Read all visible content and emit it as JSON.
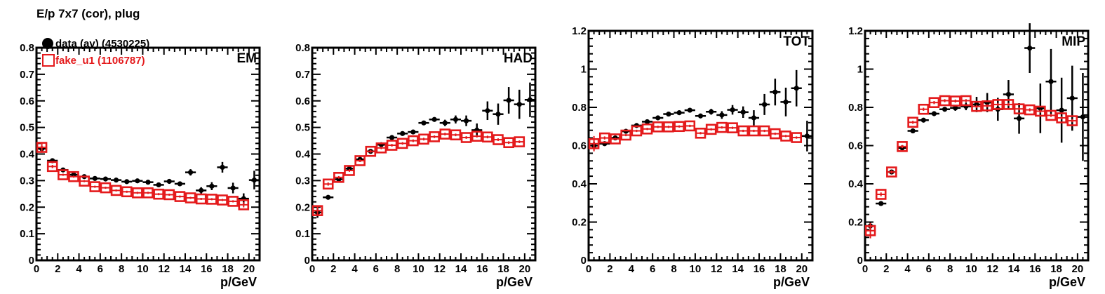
{
  "title": "E/p 7x7 (cor), plug",
  "colors": {
    "data": "#000000",
    "mc": "#e41a1c",
    "axis": "#000000"
  },
  "legend": {
    "data_label": "data (av) (4530225)",
    "mc_label": "fake_u1 (1106787)"
  },
  "chart_data": [
    {
      "type": "scatter",
      "panel_label": "EM",
      "xlabel": "p/GeV",
      "ylabel": "",
      "xlim": [
        0,
        21
      ],
      "ylim": [
        0,
        0.8
      ],
      "xticks": [
        "0",
        "2",
        "4",
        "6",
        "8",
        "10",
        "12",
        "14",
        "16",
        "18",
        "20"
      ],
      "yticks": [
        "0",
        "0.1",
        "0.2",
        "0.3",
        "0.4",
        "0.5",
        "0.6",
        "0.7",
        "0.8"
      ],
      "ytick_values": [
        0,
        0.1,
        0.2,
        0.3,
        0.4,
        0.5,
        0.6,
        0.7,
        0.8
      ],
      "series": [
        {
          "name": "data (av) (4530225)",
          "x": [
            0.5,
            1.5,
            2.5,
            3.5,
            4.5,
            5.5,
            6.5,
            7.5,
            8.5,
            9.5,
            10.5,
            11.5,
            12.5,
            13.5,
            14.5,
            15.5,
            16.5,
            17.5,
            18.5,
            19.5,
            20.5
          ],
          "y": [
            0.42,
            0.375,
            0.34,
            0.322,
            0.315,
            0.308,
            0.306,
            0.302,
            0.296,
            0.299,
            0.294,
            0.284,
            0.297,
            0.288,
            0.331,
            0.263,
            0.279,
            0.35,
            0.272,
            0.232,
            0.302
          ],
          "yerr": [
            0.004,
            0.003,
            0.003,
            0.003,
            0.003,
            0.003,
            0.003,
            0.004,
            0.004,
            0.004,
            0.005,
            0.006,
            0.008,
            0.008,
            0.012,
            0.012,
            0.015,
            0.02,
            0.02,
            0.02,
            0.035
          ]
        },
        {
          "name": "fake_u1 (1106787)",
          "x": [
            0.5,
            1.5,
            2.5,
            3.5,
            4.5,
            5.5,
            6.5,
            7.5,
            8.5,
            9.5,
            10.5,
            11.5,
            12.5,
            13.5,
            14.5,
            15.5,
            16.5,
            17.5,
            18.5,
            19.5
          ],
          "y": [
            0.425,
            0.353,
            0.322,
            0.315,
            0.298,
            0.277,
            0.273,
            0.263,
            0.258,
            0.254,
            0.254,
            0.249,
            0.247,
            0.24,
            0.235,
            0.231,
            0.23,
            0.227,
            0.222,
            0.209
          ],
          "yerr": [
            0.02,
            0.006,
            0.004,
            0.004,
            0.004,
            0.004,
            0.004,
            0.004,
            0.004,
            0.004,
            0.004,
            0.004,
            0.004,
            0.004,
            0.004,
            0.004,
            0.004,
            0.004,
            0.004,
            0.01
          ]
        }
      ]
    },
    {
      "type": "scatter",
      "panel_label": "HAD",
      "xlabel": "p/GeV",
      "ylabel": "",
      "xlim": [
        0,
        21
      ],
      "ylim": [
        0,
        0.8
      ],
      "xticks": [
        "0",
        "2",
        "4",
        "6",
        "8",
        "10",
        "12",
        "14",
        "16",
        "18",
        "20"
      ],
      "yticks": [
        "0",
        "0.1",
        "0.2",
        "0.3",
        "0.4",
        "0.5",
        "0.6",
        "0.7",
        "0.8"
      ],
      "ytick_values": [
        0,
        0.1,
        0.2,
        0.3,
        0.4,
        0.5,
        0.6,
        0.7,
        0.8
      ],
      "series": [
        {
          "name": "data (av) (4530225)",
          "x": [
            0.5,
            1.5,
            2.5,
            3.5,
            4.5,
            5.5,
            6.5,
            7.5,
            8.5,
            9.5,
            10.5,
            11.5,
            12.5,
            13.5,
            14.5,
            15.5,
            16.5,
            17.5,
            18.5,
            19.5,
            20.5
          ],
          "y": [
            0.18,
            0.237,
            0.305,
            0.345,
            0.38,
            0.41,
            0.435,
            0.462,
            0.477,
            0.483,
            0.517,
            0.53,
            0.517,
            0.53,
            0.525,
            0.49,
            0.563,
            0.55,
            0.602,
            0.587,
            0.604
          ],
          "yerr": [
            0.02,
            0.003,
            0.003,
            0.003,
            0.004,
            0.004,
            0.004,
            0.005,
            0.005,
            0.005,
            0.007,
            0.008,
            0.012,
            0.015,
            0.02,
            0.025,
            0.035,
            0.04,
            0.05,
            0.055,
            0.065
          ]
        },
        {
          "name": "fake_u1 (1106787)",
          "x": [
            0.5,
            1.5,
            2.5,
            3.5,
            4.5,
            5.5,
            6.5,
            7.5,
            8.5,
            9.5,
            10.5,
            11.5,
            12.5,
            13.5,
            14.5,
            15.5,
            16.5,
            17.5,
            18.5,
            19.5
          ],
          "y": [
            0.187,
            0.287,
            0.312,
            0.338,
            0.375,
            0.41,
            0.423,
            0.433,
            0.44,
            0.45,
            0.456,
            0.465,
            0.475,
            0.472,
            0.462,
            0.467,
            0.464,
            0.454,
            0.443,
            0.446
          ],
          "yerr": [
            0.02,
            0.006,
            0.005,
            0.005,
            0.005,
            0.005,
            0.005,
            0.005,
            0.005,
            0.005,
            0.005,
            0.005,
            0.005,
            0.005,
            0.005,
            0.005,
            0.005,
            0.005,
            0.005,
            0.005
          ]
        }
      ]
    },
    {
      "type": "scatter",
      "panel_label": "TOT",
      "xlabel": "p/GeV",
      "ylabel": "",
      "xlim": [
        0,
        21
      ],
      "ylim": [
        0,
        1.2
      ],
      "xticks": [
        "0",
        "2",
        "4",
        "6",
        "8",
        "10",
        "12",
        "14",
        "16",
        "18",
        "20"
      ],
      "yticks": [
        "0",
        "0.2",
        "0.4",
        "0.6",
        "0.8",
        "1",
        "1.2"
      ],
      "ytick_values": [
        0,
        0.2,
        0.4,
        0.6,
        0.8,
        1.0,
        1.2
      ],
      "series": [
        {
          "name": "data (av) (4530225)",
          "x": [
            0.5,
            1.5,
            2.5,
            3.5,
            4.5,
            5.5,
            6.5,
            7.5,
            8.5,
            9.5,
            10.5,
            11.5,
            12.5,
            13.5,
            14.5,
            15.5,
            16.5,
            17.5,
            18.5,
            19.5,
            20.5
          ],
          "y": [
            0.6,
            0.61,
            0.64,
            0.675,
            0.705,
            0.725,
            0.745,
            0.765,
            0.772,
            0.785,
            0.755,
            0.777,
            0.76,
            0.787,
            0.775,
            0.745,
            0.815,
            0.88,
            0.828,
            0.9,
            0.65
          ],
          "yerr": [
            0.02,
            0.004,
            0.004,
            0.005,
            0.005,
            0.005,
            0.006,
            0.006,
            0.007,
            0.008,
            0.01,
            0.015,
            0.02,
            0.025,
            0.03,
            0.04,
            0.055,
            0.07,
            0.075,
            0.095,
            0.08
          ]
        },
        {
          "name": "fake_u1 (1106787)",
          "x": [
            0.5,
            1.5,
            2.5,
            3.5,
            4.5,
            5.5,
            6.5,
            7.5,
            8.5,
            9.5,
            10.5,
            11.5,
            12.5,
            13.5,
            14.5,
            15.5,
            16.5,
            17.5,
            18.5,
            19.5
          ],
          "y": [
            0.61,
            0.64,
            0.635,
            0.655,
            0.677,
            0.687,
            0.698,
            0.698,
            0.7,
            0.703,
            0.665,
            0.685,
            0.695,
            0.693,
            0.677,
            0.677,
            0.677,
            0.662,
            0.65,
            0.642
          ],
          "yerr": [
            0.04,
            0.008,
            0.006,
            0.006,
            0.006,
            0.006,
            0.006,
            0.006,
            0.006,
            0.006,
            0.006,
            0.006,
            0.006,
            0.006,
            0.006,
            0.006,
            0.006,
            0.006,
            0.006,
            0.006
          ]
        }
      ]
    },
    {
      "type": "scatter",
      "panel_label": "MIP",
      "xlabel": "p/GeV",
      "ylabel": "",
      "xlim": [
        0,
        21
      ],
      "ylim": [
        0,
        1.2
      ],
      "xticks": [
        "0",
        "2",
        "4",
        "6",
        "8",
        "10",
        "12",
        "14",
        "16",
        "18",
        "20"
      ],
      "yticks": [
        "0",
        "0.2",
        "0.4",
        "0.6",
        "0.8",
        "1",
        "1.2"
      ],
      "ytick_values": [
        0,
        0.2,
        0.4,
        0.6,
        0.8,
        1.0,
        1.2
      ],
      "series": [
        {
          "name": "data (av) (4530225)",
          "x": [
            0.5,
            1.5,
            2.5,
            3.5,
            4.5,
            5.5,
            6.5,
            7.5,
            8.5,
            9.5,
            10.5,
            11.5,
            12.5,
            13.5,
            14.5,
            15.5,
            16.5,
            17.5,
            18.5,
            19.5,
            20.5
          ],
          "y": [
            0.18,
            0.297,
            0.462,
            0.588,
            0.677,
            0.733,
            0.767,
            0.79,
            0.797,
            0.805,
            0.815,
            0.825,
            0.79,
            0.868,
            0.742,
            1.11,
            0.795,
            0.935,
            0.785,
            0.848,
            0.75
          ],
          "yerr": [
            0.02,
            0.004,
            0.005,
            0.006,
            0.006,
            0.007,
            0.008,
            0.01,
            0.015,
            0.02,
            0.04,
            0.05,
            0.06,
            0.075,
            0.08,
            0.13,
            0.13,
            0.17,
            0.17,
            0.17,
            0.23
          ]
        },
        {
          "name": "fake_u1 (1106787)",
          "x": [
            0.5,
            1.5,
            2.5,
            3.5,
            4.5,
            5.5,
            6.5,
            7.5,
            8.5,
            9.5,
            10.5,
            11.5,
            12.5,
            13.5,
            14.5,
            15.5,
            16.5,
            17.5,
            18.5,
            19.5
          ],
          "y": [
            0.155,
            0.345,
            0.462,
            0.595,
            0.722,
            0.79,
            0.825,
            0.835,
            0.833,
            0.835,
            0.805,
            0.808,
            0.815,
            0.815,
            0.792,
            0.787,
            0.78,
            0.758,
            0.745,
            0.73
          ],
          "yerr": [
            0.04,
            0.01,
            0.008,
            0.008,
            0.008,
            0.008,
            0.008,
            0.008,
            0.008,
            0.008,
            0.008,
            0.008,
            0.008,
            0.008,
            0.008,
            0.008,
            0.008,
            0.008,
            0.008,
            0.008
          ]
        }
      ]
    }
  ]
}
